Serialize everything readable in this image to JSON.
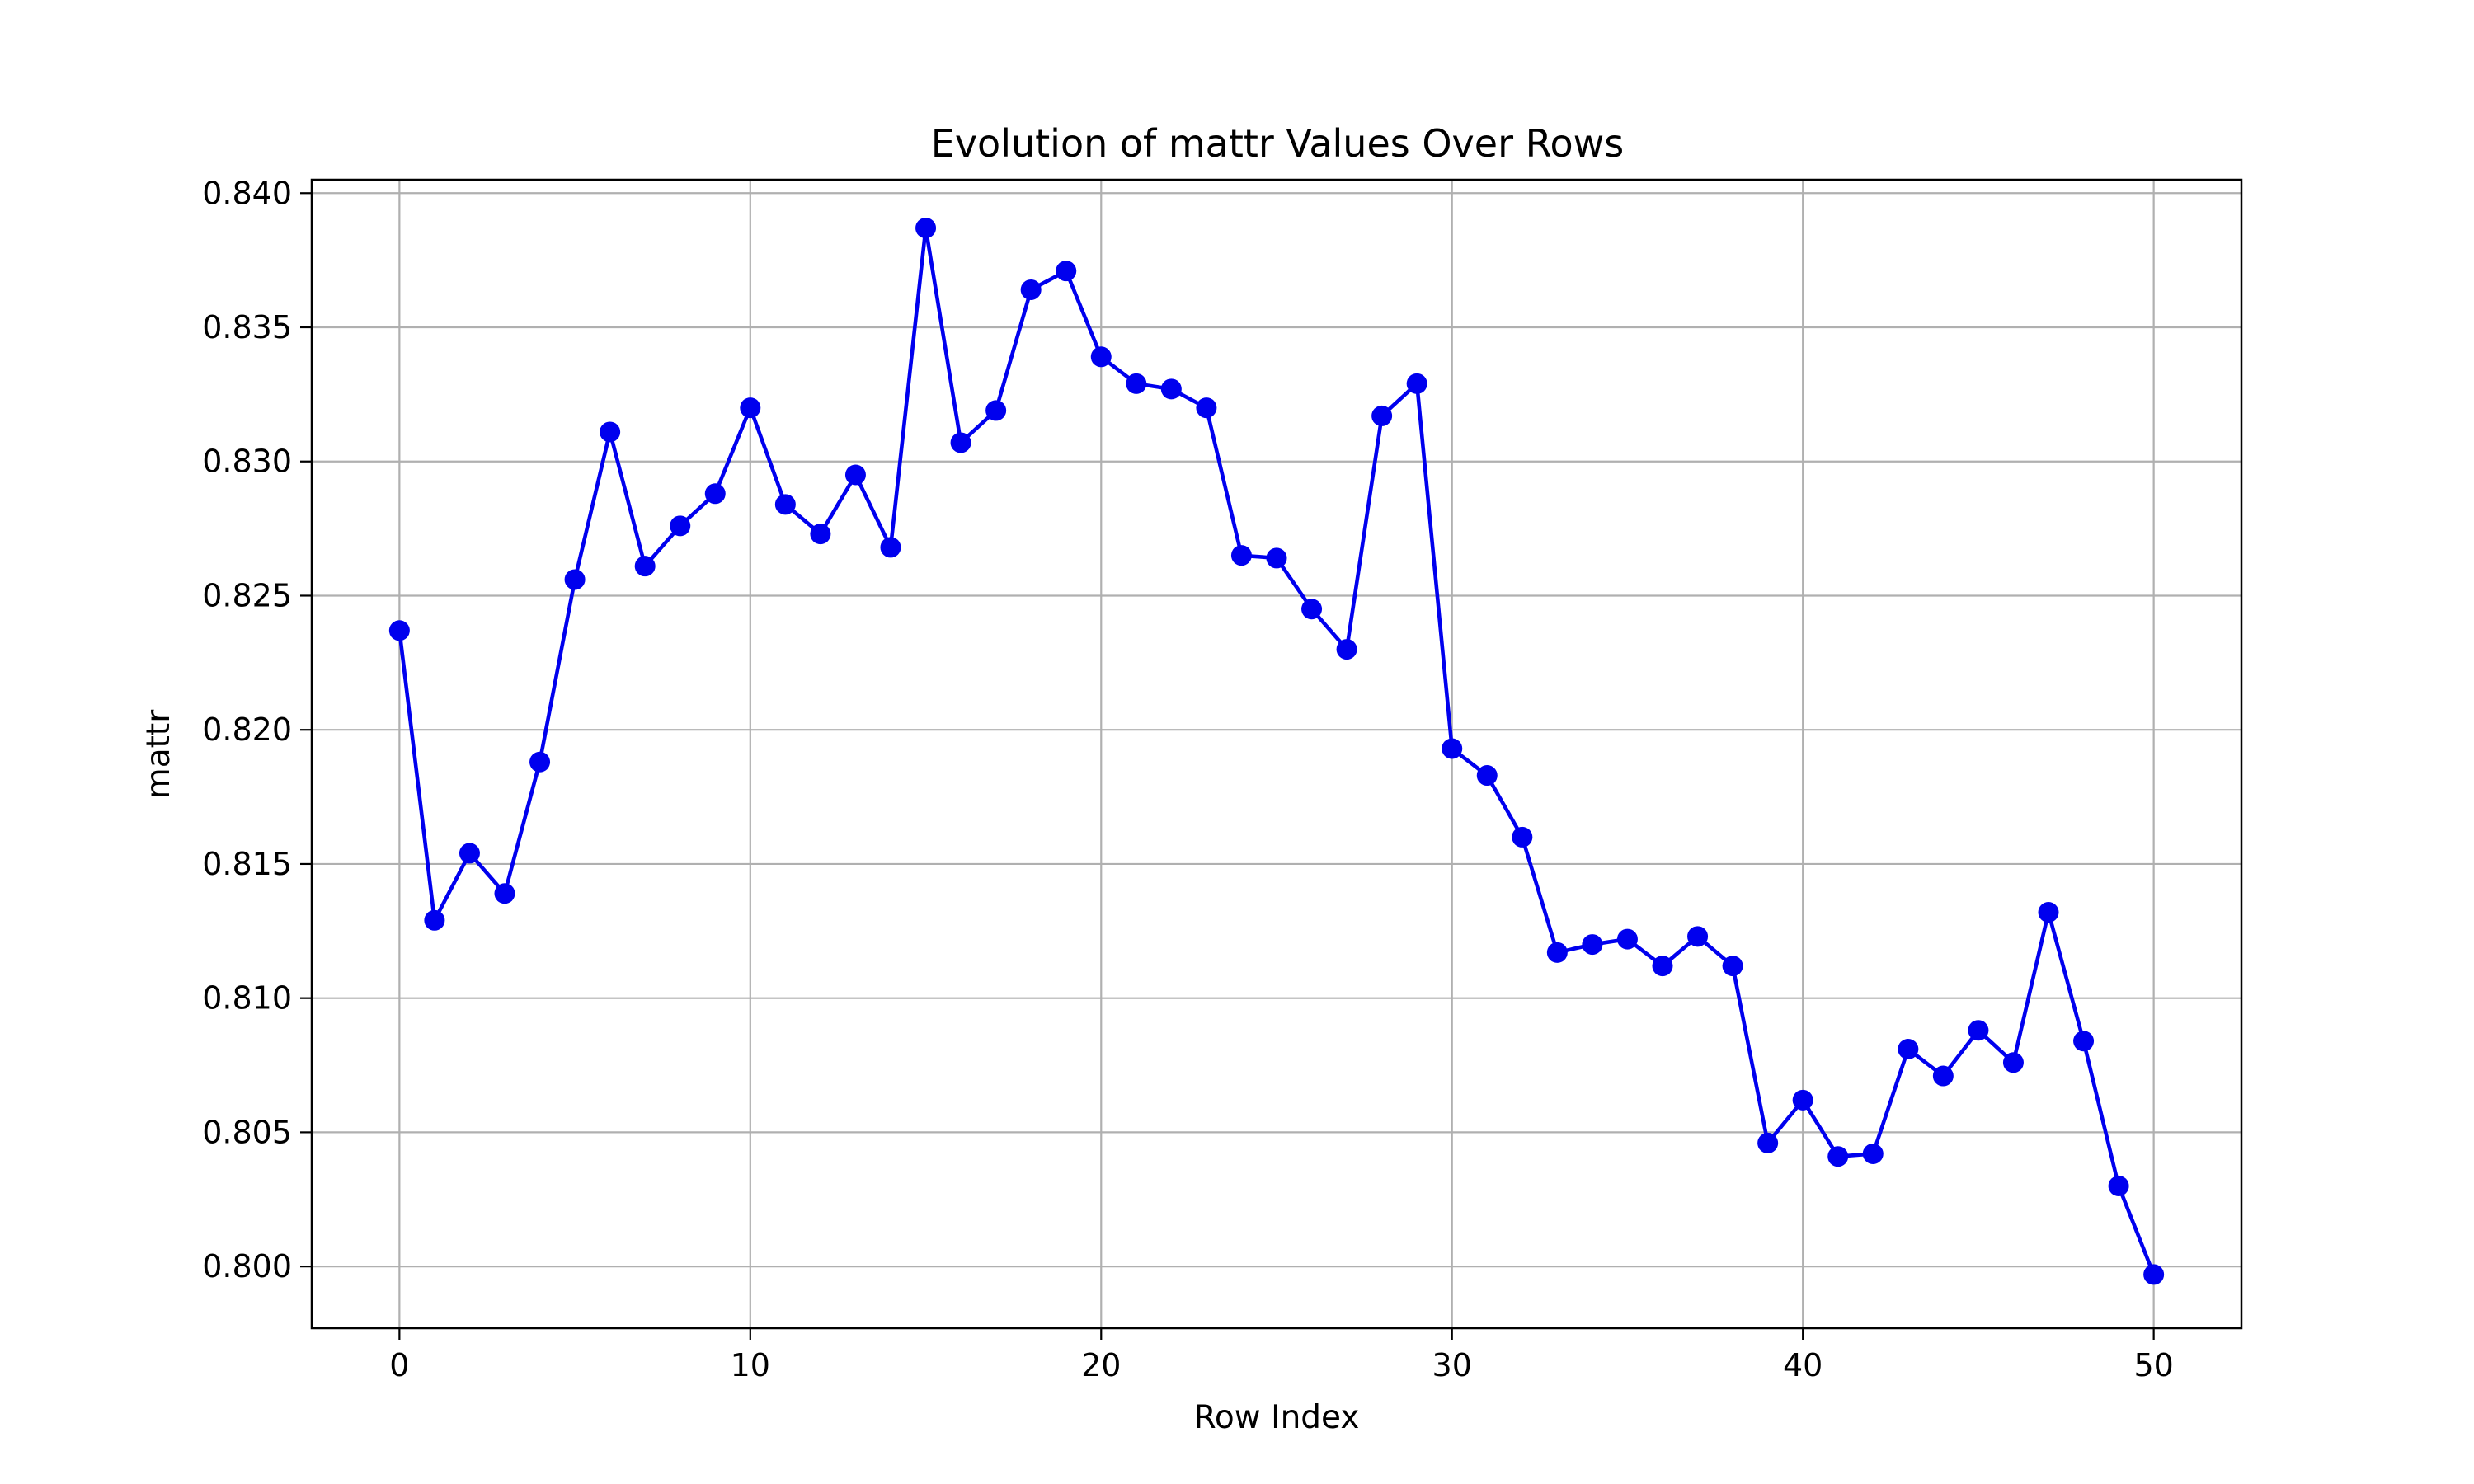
{
  "chart_data": {
    "type": "line",
    "title": "Evolution of mattr Values Over Rows",
    "xlabel": "Row Index",
    "ylabel": "mattr",
    "xlim": [
      -2.5,
      52.5
    ],
    "ylim": [
      0.7977,
      0.8405
    ],
    "x_ticks": [
      0,
      10,
      20,
      30,
      40,
      50
    ],
    "x_tick_labels": [
      "0",
      "10",
      "20",
      "30",
      "40",
      "50"
    ],
    "y_ticks": [
      0.8,
      0.805,
      0.81,
      0.815,
      0.82,
      0.825,
      0.83,
      0.835,
      0.84
    ],
    "y_tick_labels": [
      "0.800",
      "0.805",
      "0.810",
      "0.815",
      "0.820",
      "0.825",
      "0.830",
      "0.835",
      "0.840"
    ],
    "grid": true,
    "legend": "none",
    "series": [
      {
        "color": "#0000ee",
        "marker": "circle",
        "x": [
          0,
          1,
          2,
          3,
          4,
          5,
          6,
          7,
          8,
          9,
          10,
          11,
          12,
          13,
          14,
          15,
          16,
          17,
          18,
          19,
          20,
          21,
          22,
          23,
          24,
          25,
          26,
          27,
          28,
          29,
          30,
          31,
          32,
          33,
          34,
          35,
          36,
          37,
          38,
          39,
          40,
          41,
          42,
          43,
          44,
          45,
          46,
          47,
          48,
          49,
          50
        ],
        "values": [
          0.8237,
          0.8129,
          0.8154,
          0.8139,
          0.8188,
          0.8256,
          0.8311,
          0.8261,
          0.8276,
          0.8288,
          0.832,
          0.8284,
          0.8273,
          0.8295,
          0.8268,
          0.8387,
          0.8307,
          0.8319,
          0.8364,
          0.8371,
          0.8339,
          0.8329,
          0.8327,
          0.832,
          0.8265,
          0.8264,
          0.8245,
          0.823,
          0.8317,
          0.8329,
          0.8193,
          0.8183,
          0.816,
          0.8117,
          0.812,
          0.8122,
          0.8112,
          0.8123,
          0.8112,
          0.8046,
          0.8062,
          0.8041,
          0.8042,
          0.8081,
          0.8071,
          0.8088,
          0.8076,
          0.8132,
          0.8084,
          0.803,
          0.7997
        ]
      }
    ]
  }
}
